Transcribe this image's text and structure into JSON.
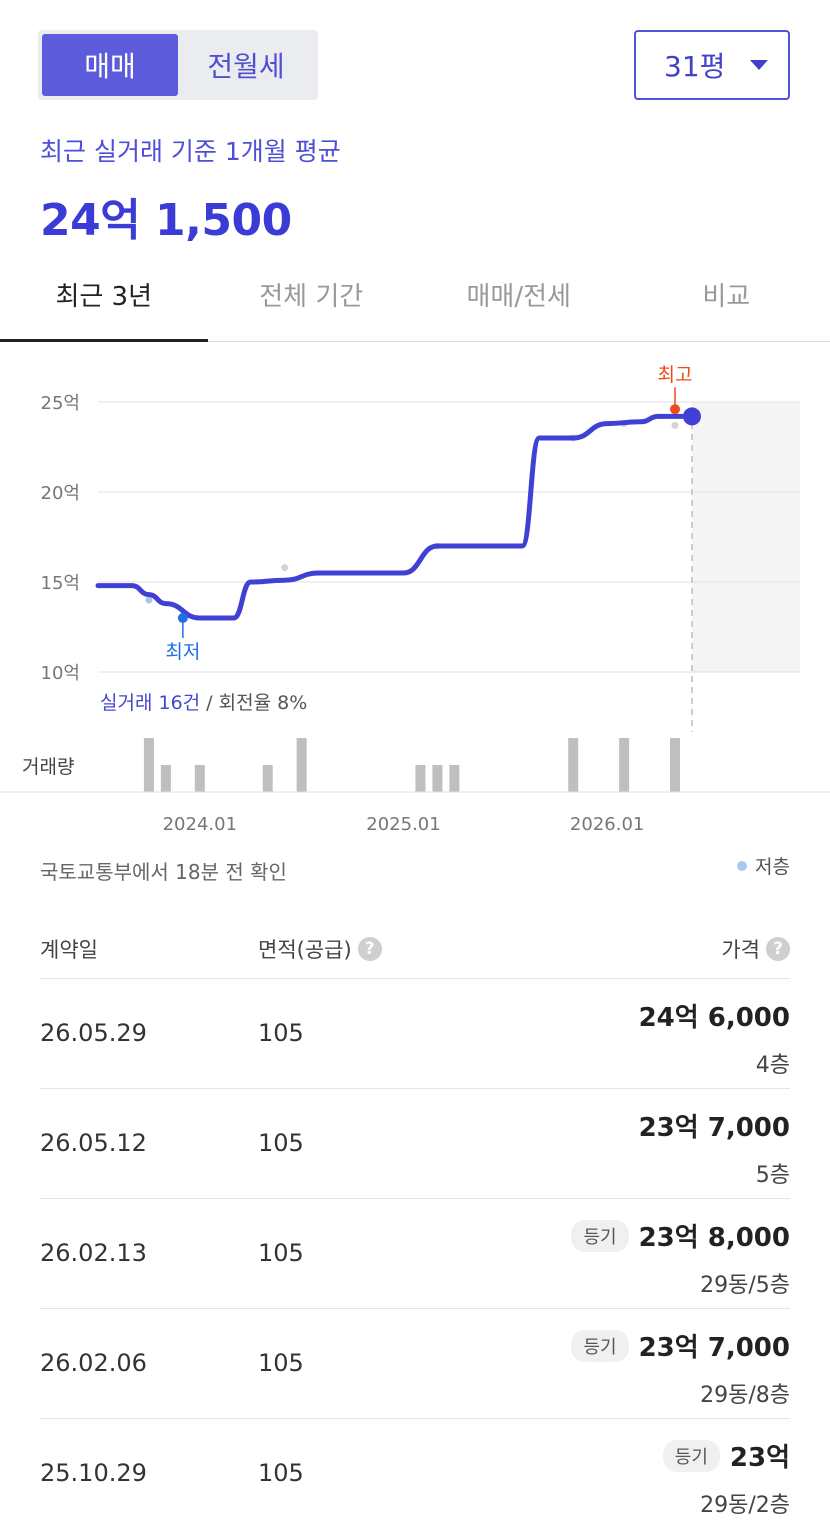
{
  "trade_tabs": [
    {
      "label": "매매",
      "active": true
    },
    {
      "label": "전월세",
      "active": false
    }
  ],
  "area_select": {
    "value": "31평"
  },
  "summary": {
    "label": "최근 실거래 기준 1개월 평균",
    "value": "24억 1,500"
  },
  "period_tabs": [
    {
      "label": "최근 3년",
      "active": true
    },
    {
      "label": "전체 기간",
      "active": false
    },
    {
      "label": "매매/전세",
      "active": false
    },
    {
      "label": "비교",
      "active": false
    }
  ],
  "chart_data": {
    "type": "line",
    "y_ticks": [
      "25억",
      "20억",
      "15억",
      "10억"
    ],
    "ylim": [
      10,
      25
    ],
    "y_unit": "억",
    "x_ticks": [
      "2024.01",
      "2025.01",
      "2026.01"
    ],
    "series": [
      {
        "x": [
          "2023.07",
          "2023.09",
          "2023.10",
          "2023.11",
          "2024.01",
          "2024.03",
          "2024.04",
          "2024.06",
          "2024.08",
          "2024.11",
          "2025.01",
          "2025.03",
          "2025.05",
          "2025.07",
          "2025.08",
          "2025.09",
          "2025.11",
          "2026.01",
          "2026.03",
          "2026.04",
          "2026.06"
        ],
        "values": [
          14.8,
          14.8,
          14.3,
          13.8,
          13.0,
          13.0,
          15.0,
          15.1,
          15.5,
          15.5,
          15.5,
          17.0,
          17.0,
          17.0,
          17.0,
          23.0,
          23.0,
          23.8,
          23.9,
          24.2,
          24.2
        ]
      }
    ],
    "scatter_points": [
      {
        "x": "2023.10",
        "y": 14.0,
        "low_floor": true
      },
      {
        "x": "2024.06",
        "y": 15.8,
        "low_floor": false
      },
      {
        "x": "2025.03",
        "y": 17.0,
        "low_floor": false
      },
      {
        "x": "2025.11",
        "y": 23.0,
        "low_floor": false
      },
      {
        "x": "2026.02",
        "y": 23.8,
        "low_floor": false
      },
      {
        "x": "2026.05",
        "y": 23.7,
        "low_floor": false
      }
    ],
    "highest": {
      "label": "최고",
      "x": "2026.05",
      "value": 24.6
    },
    "lowest": {
      "label": "최저",
      "x": "2023.12",
      "value": 13.0
    },
    "volume": {
      "label": "거래량",
      "x": [
        "2023.10",
        "2023.11",
        "2024.01",
        "2024.05",
        "2024.07",
        "2025.02",
        "2025.03",
        "2025.04",
        "2025.11",
        "2026.02",
        "2026.05"
      ],
      "values": [
        3,
        1.5,
        1.5,
        1.5,
        3,
        1.5,
        1.5,
        1.5,
        3,
        3,
        3
      ]
    },
    "colors": {
      "line": "#4040d4",
      "highest": "#f04a1a",
      "lowest": "#1f6fe5",
      "bar": "#bfbfbf"
    }
  },
  "turnover": {
    "deals": "실거래 16건",
    "rate": " / 회전율 8%"
  },
  "source": "국토교통부에서 18분 전 확인",
  "legend": {
    "label": "저층"
  },
  "table": {
    "headers": {
      "date": "계약일",
      "area": "면적(공급)",
      "price": "가격"
    },
    "rows": [
      {
        "date": "26.05.29",
        "area": "105",
        "badge": "",
        "price": "24억 6,000",
        "floor": "4층"
      },
      {
        "date": "26.05.12",
        "area": "105",
        "badge": "",
        "price": "23억 7,000",
        "floor": "5층"
      },
      {
        "date": "26.02.13",
        "area": "105",
        "badge": "등기",
        "price": "23억 8,000",
        "floor": "29동/5층"
      },
      {
        "date": "26.02.06",
        "area": "105",
        "badge": "등기",
        "price": "23억 7,000",
        "floor": "29동/8층"
      },
      {
        "date": "25.10.29",
        "area": "105",
        "badge": "등기",
        "price": "23억",
        "floor": "29동/2층"
      }
    ]
  }
}
